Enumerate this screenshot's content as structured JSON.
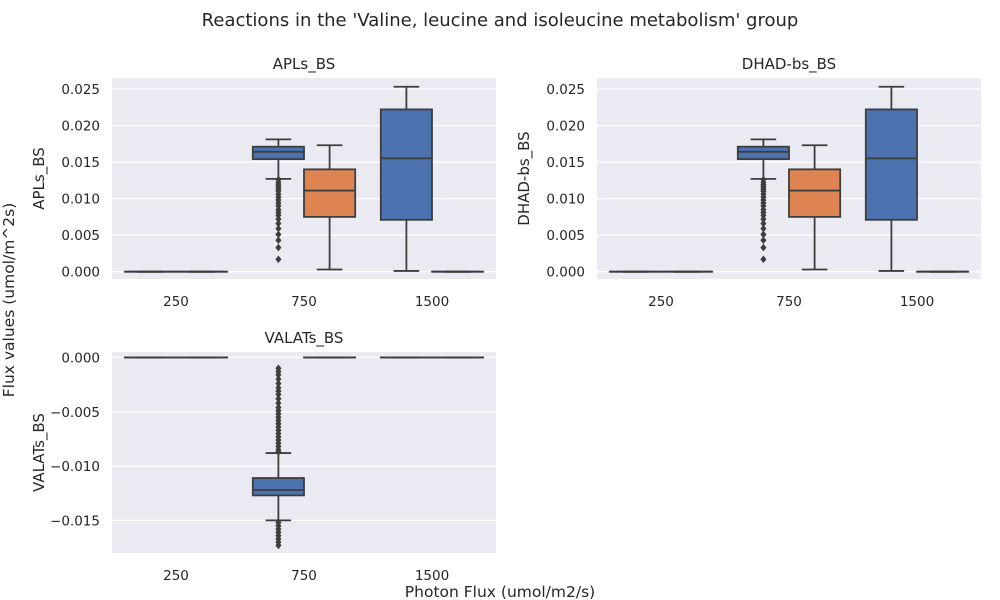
{
  "chart_data": {
    "type": "box",
    "suptitle": "Reactions in the 'Valine, leucine and isoleucine metabolism' group",
    "xlabel": "Photon Flux (umol/m2/s)",
    "ylabel": "Flux values (umol/m^2s)",
    "categories": [
      "250",
      "750",
      "1500"
    ],
    "series_colors": [
      "#4c72b0",
      "#dd8452"
    ],
    "axes_bg": "#eaeaf2",
    "panels": [
      {
        "title": "APLs_BS",
        "ylabel": "APLs_BS",
        "ylim": [
          -0.001,
          0.0265
        ],
        "yticks": [
          0.0,
          0.005,
          0.01,
          0.015,
          0.02,
          0.025
        ],
        "ytick_labels": [
          "0.000",
          "0.005",
          "0.010",
          "0.015",
          "0.020",
          "0.025"
        ],
        "boxes": [
          {
            "category": "250",
            "series": 0,
            "q1": 0,
            "median": 0,
            "q3": 0,
            "whislo": 0,
            "whishi": 0,
            "fliers": []
          },
          {
            "category": "250",
            "series": 1,
            "q1": 0,
            "median": 0,
            "q3": 0,
            "whislo": 0,
            "whishi": 0,
            "fliers": []
          },
          {
            "category": "750",
            "series": 0,
            "q1": 0.0154,
            "median": 0.0164,
            "q3": 0.0171,
            "whislo": 0.0127,
            "whishi": 0.0181,
            "fliers": [
              0.0126,
              0.0122,
              0.0119,
              0.0116,
              0.0113,
              0.011,
              0.0106,
              0.0102,
              0.0098,
              0.0094,
              0.009,
              0.0085,
              0.0081,
              0.0077,
              0.0072,
              0.0066,
              0.0059,
              0.0051,
              0.0043,
              0.0033,
              0.0017
            ]
          },
          {
            "category": "750",
            "series": 1,
            "q1": 0.0075,
            "median": 0.0111,
            "q3": 0.014,
            "whislo": 0.0003,
            "whishi": 0.0173,
            "fliers": []
          },
          {
            "category": "1500",
            "series": 0,
            "q1": 0.0071,
            "median": 0.0155,
            "q3": 0.0222,
            "whislo": 0.0001,
            "whishi": 0.0253,
            "fliers": []
          },
          {
            "category": "1500",
            "series": 1,
            "q1": 0,
            "median": 0,
            "q3": 0,
            "whislo": 0,
            "whishi": 0,
            "fliers": []
          }
        ]
      },
      {
        "title": "DHAD-bs_BS",
        "ylabel": "DHAD-bs_BS",
        "ylim": [
          -0.001,
          0.0265
        ],
        "yticks": [
          0.0,
          0.005,
          0.01,
          0.015,
          0.02,
          0.025
        ],
        "ytick_labels": [
          "0.000",
          "0.005",
          "0.010",
          "0.015",
          "0.020",
          "0.025"
        ],
        "boxes": [
          {
            "category": "250",
            "series": 0,
            "q1": 0,
            "median": 0,
            "q3": 0,
            "whislo": 0,
            "whishi": 0,
            "fliers": []
          },
          {
            "category": "250",
            "series": 1,
            "q1": 0,
            "median": 0,
            "q3": 0,
            "whislo": 0,
            "whishi": 0,
            "fliers": []
          },
          {
            "category": "750",
            "series": 0,
            "q1": 0.0154,
            "median": 0.0164,
            "q3": 0.0171,
            "whislo": 0.0127,
            "whishi": 0.0181,
            "fliers": [
              0.0126,
              0.0122,
              0.0119,
              0.0116,
              0.0113,
              0.011,
              0.0106,
              0.0102,
              0.0098,
              0.0094,
              0.009,
              0.0085,
              0.0081,
              0.0077,
              0.0072,
              0.0066,
              0.0059,
              0.0051,
              0.0043,
              0.0033,
              0.0017
            ]
          },
          {
            "category": "750",
            "series": 1,
            "q1": 0.0075,
            "median": 0.0111,
            "q3": 0.014,
            "whislo": 0.0003,
            "whishi": 0.0173,
            "fliers": []
          },
          {
            "category": "1500",
            "series": 0,
            "q1": 0.0071,
            "median": 0.0155,
            "q3": 0.0222,
            "whislo": 0.0001,
            "whishi": 0.0253,
            "fliers": []
          },
          {
            "category": "1500",
            "series": 1,
            "q1": 0,
            "median": 0,
            "q3": 0,
            "whislo": 0,
            "whishi": 0,
            "fliers": []
          }
        ]
      },
      {
        "title": "VALATs_BS",
        "ylabel": "VALATs_BS",
        "ylim": [
          -0.018,
          0.0005
        ],
        "yticks": [
          0.0,
          -0.005,
          -0.01,
          -0.015
        ],
        "ytick_labels": [
          "0.000",
          "−0.005",
          "−0.010",
          "−0.015"
        ],
        "boxes": [
          {
            "category": "250",
            "series": 0,
            "q1": 0,
            "median": 0,
            "q3": 0,
            "whislo": 0,
            "whishi": 0,
            "fliers": []
          },
          {
            "category": "250",
            "series": 1,
            "q1": 0,
            "median": 0,
            "q3": 0,
            "whislo": 0,
            "whishi": 0,
            "fliers": []
          },
          {
            "category": "750",
            "series": 0,
            "q1": -0.0127,
            "median": -0.0122,
            "q3": -0.0111,
            "whislo": -0.015,
            "whishi": -0.0088,
            "fliers": [
              -0.001,
              -0.0013,
              -0.0016,
              -0.002,
              -0.0024,
              -0.0028,
              -0.0031,
              -0.0034,
              -0.0038,
              -0.0042,
              -0.0046,
              -0.0049,
              -0.0052,
              -0.0055,
              -0.0058,
              -0.0061,
              -0.0064,
              -0.0067,
              -0.007,
              -0.0073,
              -0.0076,
              -0.0079,
              -0.0082,
              -0.0085,
              -0.0087,
              -0.0152,
              -0.0155,
              -0.0158,
              -0.0161,
              -0.0164,
              -0.0167,
              -0.017,
              -0.0173
            ]
          },
          {
            "category": "750",
            "series": 1,
            "q1": 0,
            "median": 0,
            "q3": 0,
            "whislo": 0,
            "whishi": 0,
            "fliers": []
          },
          {
            "category": "1500",
            "series": 0,
            "q1": 0,
            "median": 0,
            "q3": 0,
            "whislo": 0,
            "whishi": 0,
            "fliers": []
          },
          {
            "category": "1500",
            "series": 1,
            "q1": 0,
            "median": 0,
            "q3": 0,
            "whislo": 0,
            "whishi": 0,
            "fliers": []
          }
        ]
      }
    ]
  }
}
